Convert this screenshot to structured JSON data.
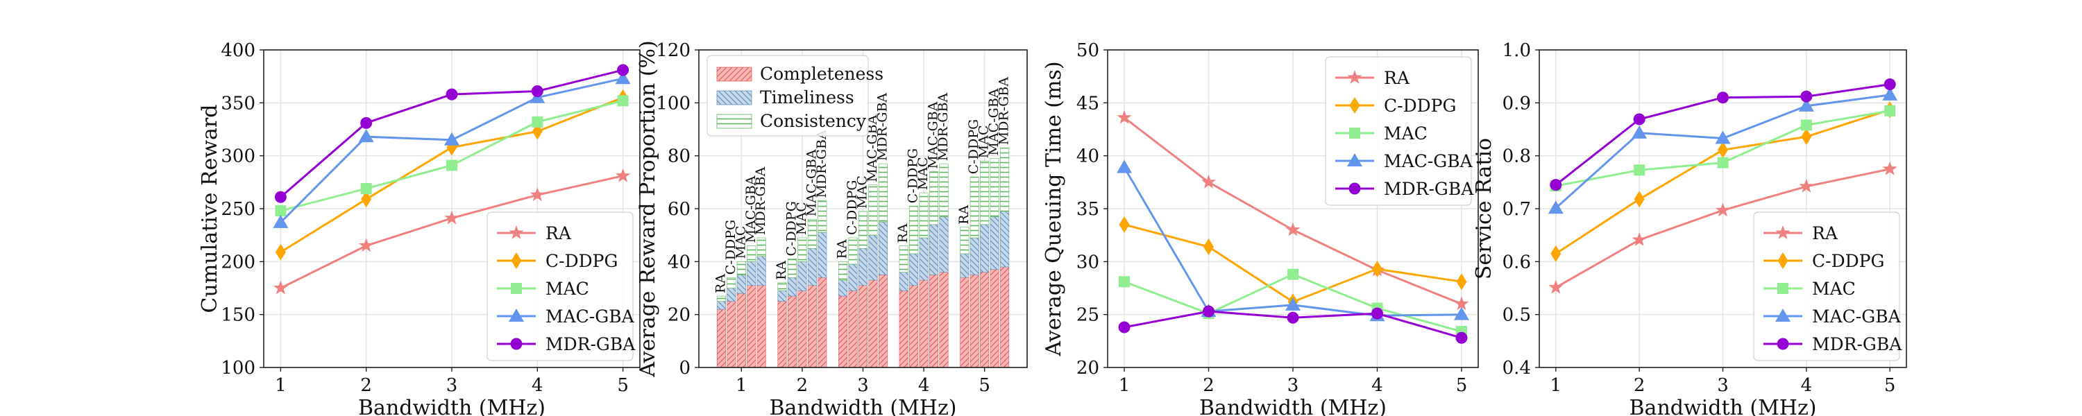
{
  "colors": {
    "RA": "#f08080",
    "C-DDPG": "#ffa500",
    "MAC": "#90ee90",
    "MAC-GBA": "#6495ed",
    "MDR-GBA": "#9400d3",
    "Completeness": "#f08080",
    "Timeliness": "#9fbfdf",
    "Consistency": "#8fd88f"
  },
  "chart_data": [
    {
      "type": "line",
      "xlabel": "Bandwidth (MHz)",
      "ylabel": "Cumulative Reward",
      "x": [
        1,
        2,
        3,
        4,
        5
      ],
      "ylim": [
        100,
        400
      ],
      "yticks": [
        100,
        150,
        200,
        250,
        300,
        350,
        400
      ],
      "grid": true,
      "legend": "bottom-right",
      "series": [
        {
          "name": "RA",
          "marker": "star",
          "values": [
            175,
            215,
            241,
            263,
            281
          ]
        },
        {
          "name": "C-DDPG",
          "marker": "diamond",
          "values": [
            209,
            259,
            308,
            323,
            355
          ]
        },
        {
          "name": "MAC",
          "marker": "square",
          "values": [
            248,
            269,
            291,
            332,
            352
          ]
        },
        {
          "name": "MAC-GBA",
          "marker": "triangle",
          "values": [
            237,
            318,
            315,
            355,
            373
          ]
        },
        {
          "name": "MDR-GBA",
          "marker": "circle",
          "values": [
            261,
            331,
            358,
            361,
            381
          ]
        }
      ]
    },
    {
      "type": "bar",
      "stacked": true,
      "xlabel": "Bandwidth (MHz)",
      "ylabel": "Average Reward Proportion (%)",
      "categories": [
        "1",
        "2",
        "3",
        "4",
        "5"
      ],
      "methods": [
        "RA",
        "C-DDPG",
        "MAC",
        "MAC-GBA",
        "MDR-GBA"
      ],
      "ylim": [
        0,
        120
      ],
      "yticks": [
        0,
        20,
        40,
        60,
        80,
        100,
        120
      ],
      "grid": true,
      "legend": "top-left",
      "series": [
        {
          "name": "Completeness",
          "values": [
            [
              22,
              25,
              28,
              31,
              31
            ],
            [
              25,
              27,
              29,
              31,
              34
            ],
            [
              27,
              29,
              31,
              33,
              35
            ],
            [
              29,
              31,
              33,
              35,
              36
            ],
            [
              34,
              35,
              36,
              37,
              38
            ]
          ]
        },
        {
          "name": "Timeliness",
          "values": [
            [
              3,
              5,
              7,
              9,
              11
            ],
            [
              4,
              7,
              11,
              14,
              17
            ],
            [
              6,
              10,
              14,
              17,
              20
            ],
            [
              7,
              12,
              16,
              19,
              21
            ],
            [
              9,
              14,
              18,
              20,
              21
            ]
          ]
        },
        {
          "name": "Consistency",
          "values": [
            [
              2,
              4,
              5,
              6,
              7
            ],
            [
              3,
              7,
              9,
              11,
              12
            ],
            [
              7,
              10,
              14,
              19,
              22
            ],
            [
              10,
              18,
              17,
              20,
              20
            ],
            [
              10,
              23,
              24,
              22,
              24
            ]
          ]
        }
      ]
    },
    {
      "type": "line",
      "xlabel": "Bandwidth (MHz)",
      "ylabel": "Average Queuing Time (ms)",
      "x": [
        1,
        2,
        3,
        4,
        5
      ],
      "ylim": [
        20,
        50
      ],
      "yticks": [
        20,
        25,
        30,
        35,
        40,
        45,
        50
      ],
      "grid": true,
      "legend": "top-right",
      "series": [
        {
          "name": "RA",
          "marker": "star",
          "values": [
            43.6,
            37.5,
            33.0,
            29.2,
            26.0
          ]
        },
        {
          "name": "C-DDPG",
          "marker": "diamond",
          "values": [
            33.5,
            31.4,
            26.2,
            29.3,
            28.1
          ]
        },
        {
          "name": "MAC",
          "marker": "square",
          "values": [
            28.1,
            25.1,
            28.8,
            25.6,
            23.4
          ]
        },
        {
          "name": "MAC-GBA",
          "marker": "triangle",
          "values": [
            38.9,
            25.3,
            25.9,
            24.9,
            25.0
          ]
        },
        {
          "name": "MDR-GBA",
          "marker": "circle",
          "values": [
            23.8,
            25.3,
            24.7,
            25.1,
            22.8
          ]
        }
      ]
    },
    {
      "type": "line",
      "xlabel": "Bandwidth (MHz)",
      "ylabel": "Service Ratio",
      "x": [
        1,
        2,
        3,
        4,
        5
      ],
      "ylim": [
        0.4,
        1.0
      ],
      "yticks": [
        0.4,
        0.5,
        0.6,
        0.7,
        0.8,
        0.9,
        1.0
      ],
      "grid": true,
      "legend": "bottom-right",
      "series": [
        {
          "name": "RA",
          "marker": "star",
          "values": [
            0.551,
            0.641,
            0.697,
            0.742,
            0.775
          ]
        },
        {
          "name": "C-DDPG",
          "marker": "diamond",
          "values": [
            0.615,
            0.718,
            0.811,
            0.836,
            0.887
          ]
        },
        {
          "name": "MAC",
          "marker": "square",
          "values": [
            0.743,
            0.773,
            0.787,
            0.858,
            0.885
          ]
        },
        {
          "name": "MAC-GBA",
          "marker": "triangle",
          "values": [
            0.701,
            0.843,
            0.833,
            0.894,
            0.915
          ]
        },
        {
          "name": "MDR-GBA",
          "marker": "circle",
          "values": [
            0.745,
            0.869,
            0.91,
            0.912,
            0.935
          ]
        }
      ]
    }
  ]
}
